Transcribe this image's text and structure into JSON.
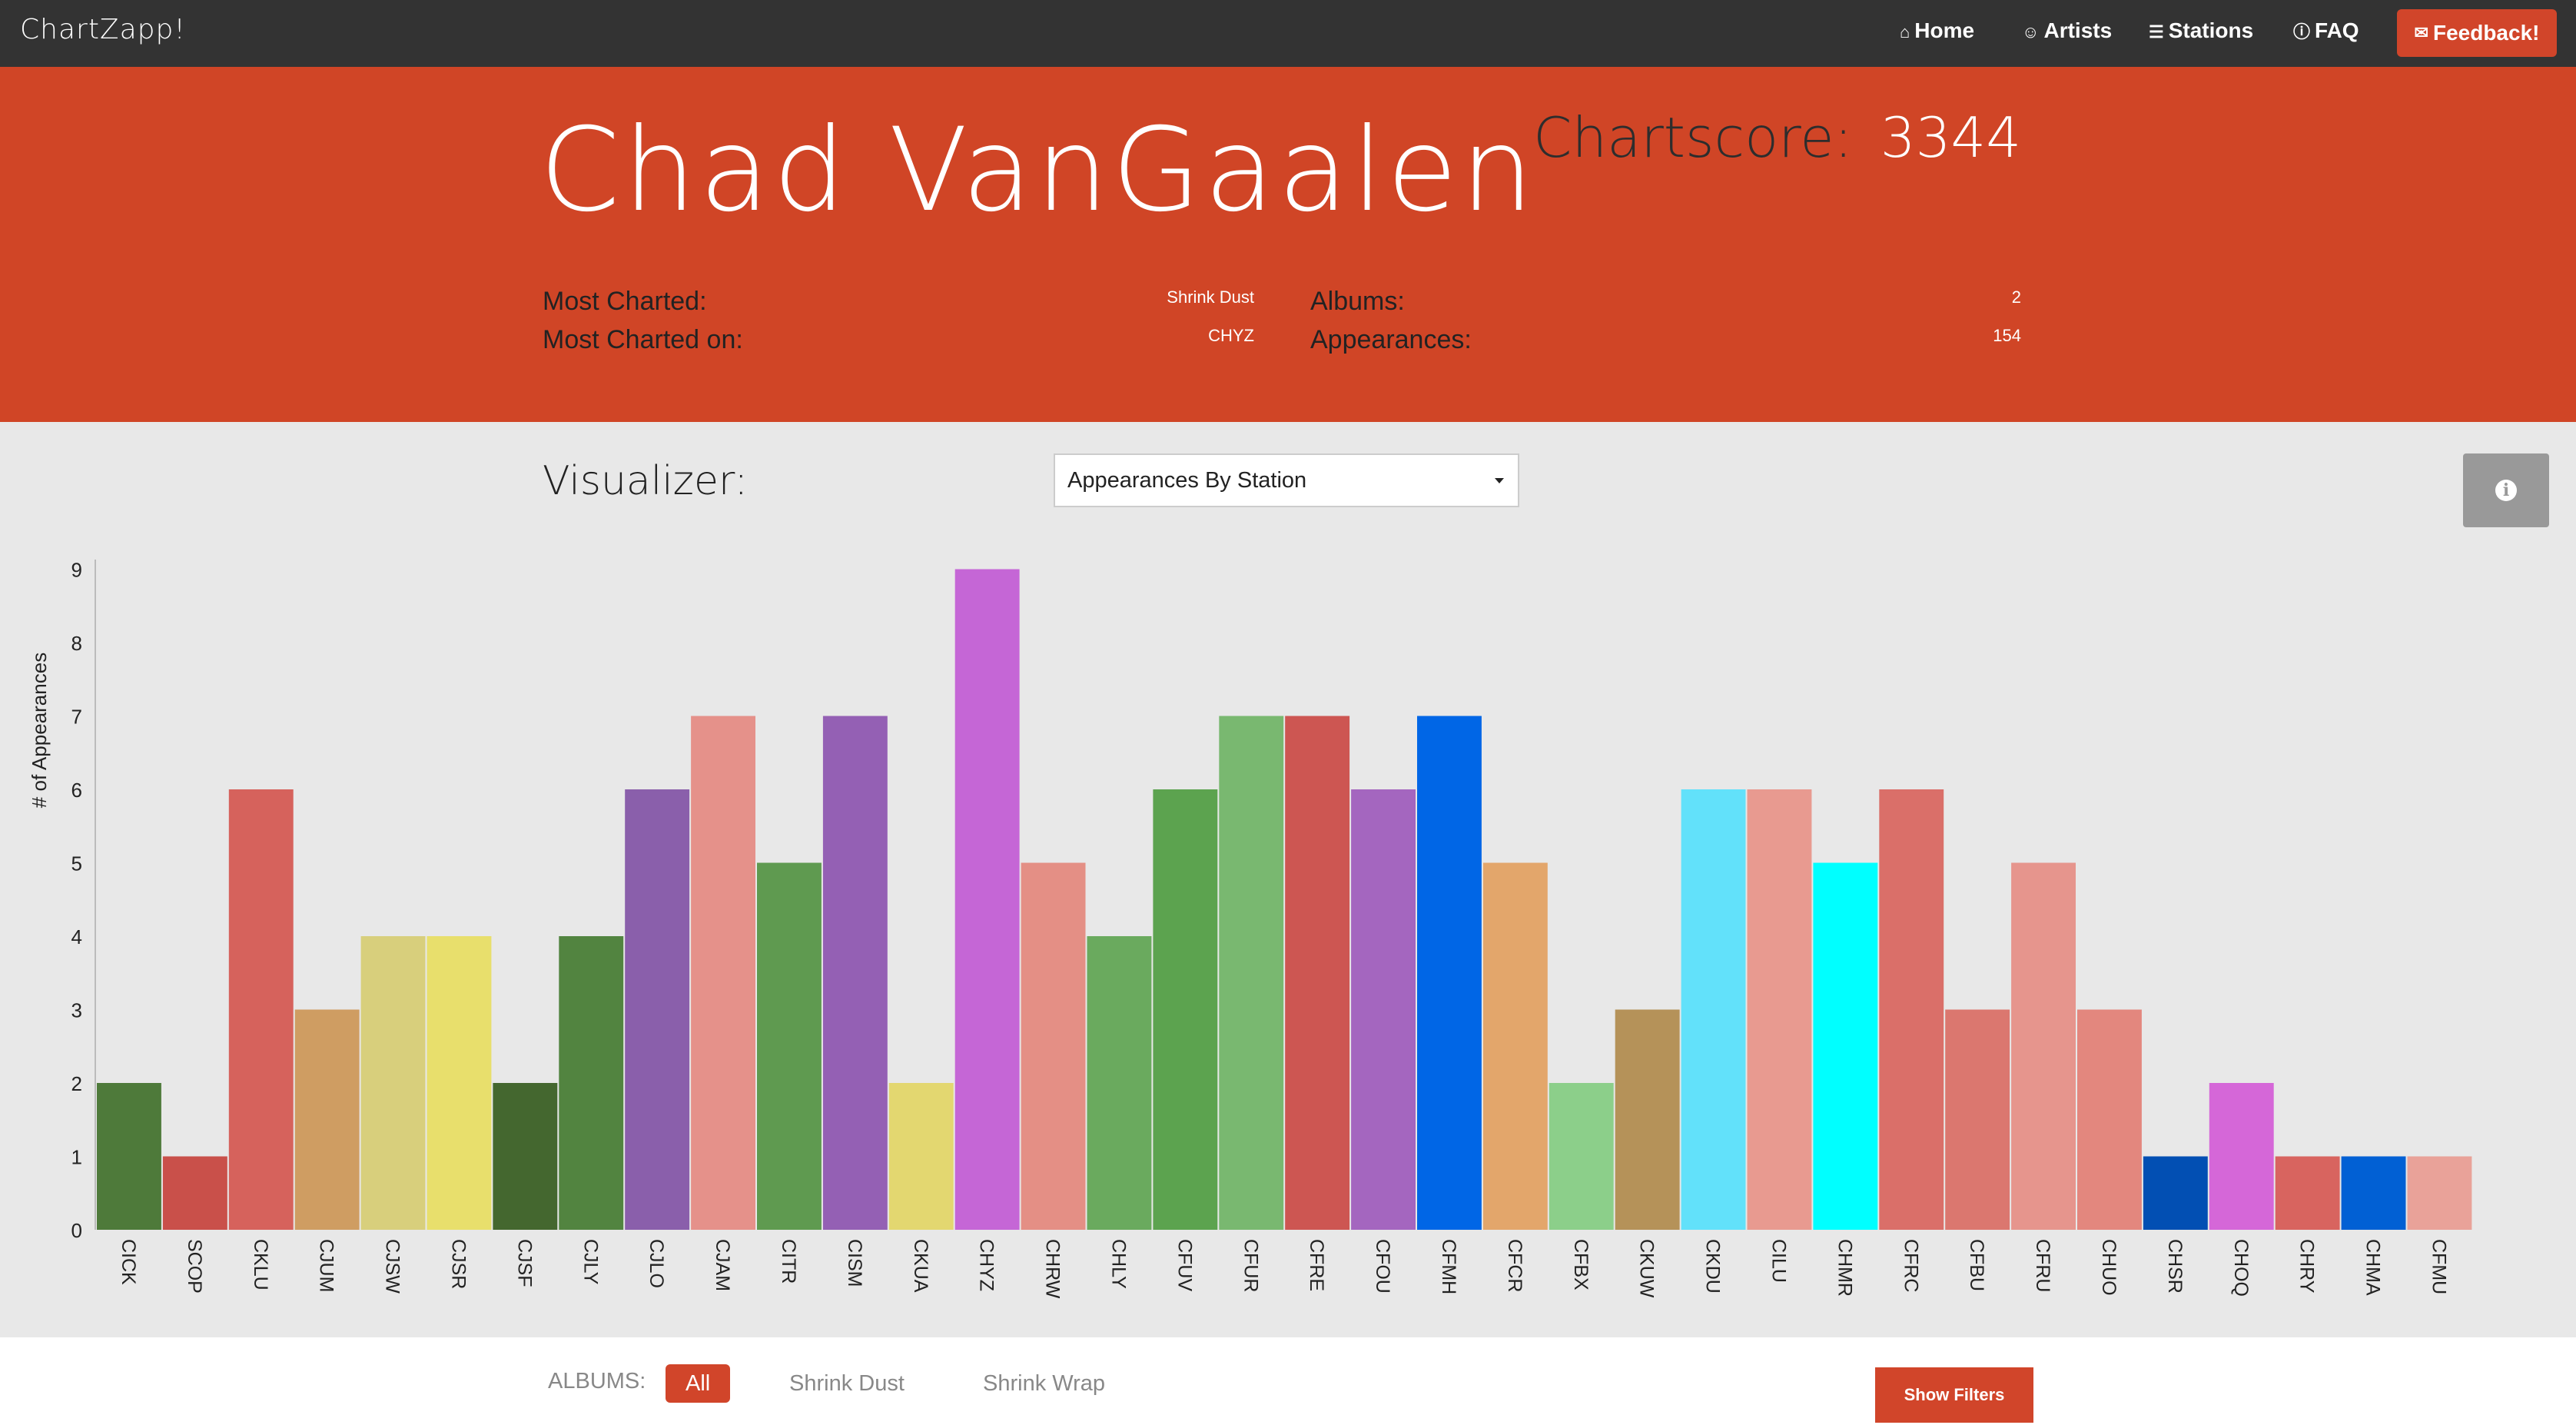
{
  "nav": {
    "brand": "ChartZapp!",
    "home": "Home",
    "artists": "Artists",
    "stations": "Stations",
    "faq": "FAQ",
    "feedback": "Feedback!",
    "icons": [
      "home-icon",
      "artists-icon",
      "list-icon",
      "info-icon",
      "envelope-icon"
    ]
  },
  "hero": {
    "artist": "Chad VanGaalen",
    "chartscore_label": "Chartscore:",
    "chartscore_value": "3344",
    "most_charted_label": "Most Charted:",
    "most_charted_value": "Shrink Dust",
    "most_charted_on_label": "Most Charted on:",
    "most_charted_on_value": "CHYZ",
    "albums_label": "Albums:",
    "albums_value": "2",
    "appearances_label": "Appearances:",
    "appearances_value": "154"
  },
  "visualizer": {
    "title": "Visualizer:",
    "selected": "Appearances By Station"
  },
  "footer": {
    "albums_label": "ALBUMS:",
    "albums": [
      "All",
      "Shrink Dust",
      "Shrink Wrap"
    ],
    "active_album": "All",
    "show_filters": "Show Filters"
  },
  "colors": {
    "navbar": "#333333",
    "hero": "#d04526",
    "accent": "#d1452a"
  },
  "chart_data": {
    "type": "bar",
    "ylabel": "# of Appearances",
    "ylim": [
      0,
      9
    ],
    "yticks": [
      0,
      1,
      2,
      3,
      4,
      5,
      6,
      7,
      8,
      9
    ],
    "categories": [
      "CICK",
      "SCOP",
      "CKLU",
      "CJUM",
      "CJSW",
      "CJSR",
      "CJSF",
      "CJLY",
      "CJLO",
      "CJAM",
      "CITR",
      "CISM",
      "CKUA",
      "CHYZ",
      "CHRW",
      "CHLY",
      "CFUV",
      "CFUR",
      "CFRE",
      "CFOU",
      "CFMH",
      "CFCR",
      "CFBX",
      "CKUW",
      "CKDU",
      "CILU",
      "CHMR",
      "CFRC",
      "CFBU",
      "CFRU",
      "CHUO",
      "CHSR",
      "CHOQ",
      "CHRY",
      "CHMA",
      "CFMU"
    ],
    "values": [
      2,
      1,
      6,
      3,
      4,
      4,
      2,
      4,
      6,
      7,
      5,
      7,
      2,
      9,
      5,
      4,
      6,
      7,
      7,
      6,
      7,
      5,
      2,
      3,
      6,
      6,
      5,
      6,
      3,
      5,
      3,
      1,
      2,
      1,
      1,
      1
    ],
    "colors": [
      "#4e7a3a",
      "#c9504a",
      "#d6625c",
      "#cf9d62",
      "#d8cf7c",
      "#e8df6c",
      "#44672f",
      "#528440",
      "#8a5fab",
      "#e5918a",
      "#5f9a50",
      "#9460b4",
      "#e3d770",
      "#c566d6",
      "#e48f85",
      "#6aaa5e",
      "#5ca34f",
      "#79b870",
      "#cd5652",
      "#a466bf",
      "#0066e6",
      "#e3a66b",
      "#8ccf8a",
      "#b59259",
      "#62e1fa",
      "#e89a90",
      "#00ffff",
      "#da6f69",
      "#db776f",
      "#e6958d",
      "#e3877e",
      "#024fb3",
      "#d567d8",
      "#d8645f",
      "#0160d4",
      "#e9a299"
    ]
  }
}
